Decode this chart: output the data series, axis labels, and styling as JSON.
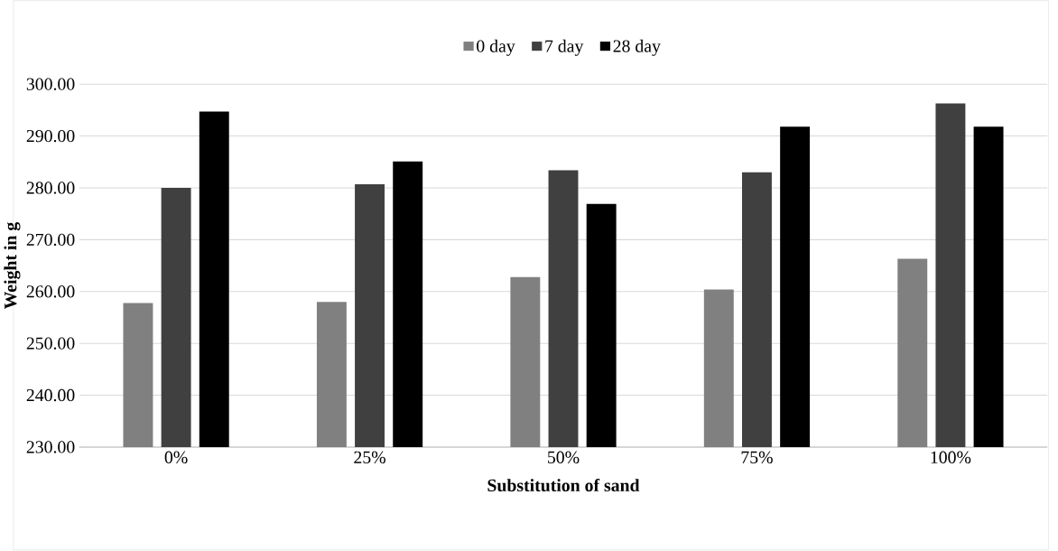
{
  "chart_data": {
    "type": "bar",
    "xlabel": "Substitution of sand",
    "ylabel": "Weight in g",
    "categories": [
      "0%",
      "25%",
      "50%",
      "75%",
      "100%"
    ],
    "series": [
      {
        "name": "0 day",
        "color": "#808080",
        "values": [
          257.8,
          258.0,
          262.8,
          260.4,
          266.3
        ]
      },
      {
        "name": "7 day",
        "color": "#404040",
        "values": [
          280.0,
          280.7,
          283.4,
          283.0,
          296.3
        ]
      },
      {
        "name": "28 day",
        "color": "#000000",
        "values": [
          294.7,
          285.1,
          276.9,
          291.8,
          291.8
        ]
      }
    ],
    "ylim": [
      230,
      300
    ],
    "yticks": [
      {
        "value": 230,
        "label": "230.00"
      },
      {
        "value": 240,
        "label": "240.00"
      },
      {
        "value": 250,
        "label": "250.00"
      },
      {
        "value": 260,
        "label": "260.00"
      },
      {
        "value": 270,
        "label": "270.00"
      },
      {
        "value": 280,
        "label": "280.00"
      },
      {
        "value": 290,
        "label": "290.00"
      },
      {
        "value": 300,
        "label": "300.00"
      }
    ],
    "grid": "y",
    "legend": "top"
  }
}
